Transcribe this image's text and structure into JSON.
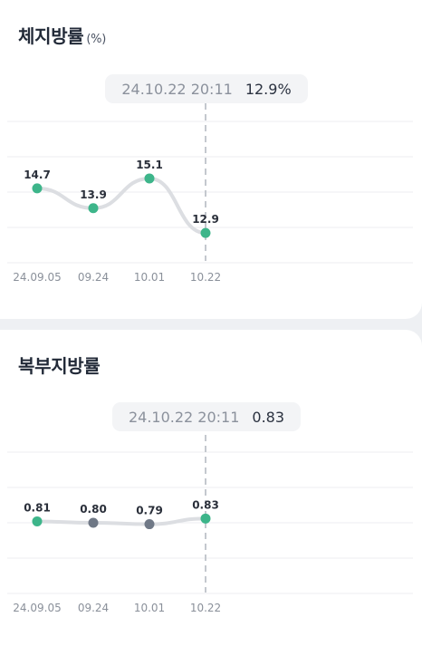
{
  "card1": {
    "title": "체지방률",
    "unit": "(%)",
    "tooltip": {
      "date": "24.10.22 20:11",
      "value": "12.9%"
    }
  },
  "card2": {
    "title": "복부지방률",
    "tooltip": {
      "date": "24.10.22 20:11",
      "value": "0.83"
    }
  },
  "colors": {
    "accent": "#3db58a",
    "muted_point": "#6f7886",
    "line": "#dcdee2"
  },
  "chart_data": [
    {
      "type": "line",
      "categories": [
        "24.09.05",
        "09.24",
        "10.01",
        "10.22"
      ],
      "values": [
        14.7,
        13.9,
        15.1,
        12.9
      ],
      "value_labels": [
        "14.7",
        "13.9",
        "15.1",
        "12.9"
      ],
      "point_status": [
        "normal",
        "normal",
        "normal",
        "normal"
      ],
      "selected_index": 3,
      "ylim": [
        11.7,
        17.4
      ]
    },
    {
      "type": "line",
      "categories": [
        "24.09.05",
        "09.24",
        "10.01",
        "10.22"
      ],
      "values": [
        0.81,
        0.8,
        0.79,
        0.83
      ],
      "value_labels": [
        "0.81",
        "0.80",
        "0.79",
        "0.83"
      ],
      "point_status": [
        "normal",
        "muted",
        "muted",
        "normal"
      ],
      "selected_index": 3,
      "ylim": [
        0.3,
        1.3
      ]
    }
  ]
}
